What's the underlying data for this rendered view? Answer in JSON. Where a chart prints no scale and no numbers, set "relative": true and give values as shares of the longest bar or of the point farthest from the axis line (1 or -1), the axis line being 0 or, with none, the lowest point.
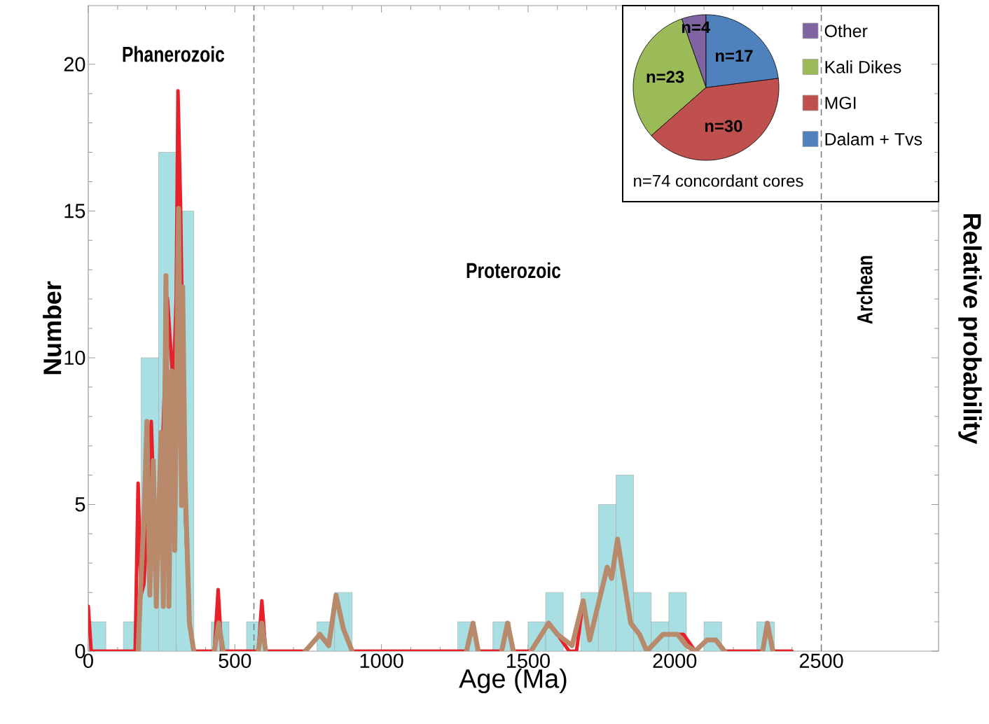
{
  "chart_data": [
    {
      "type": "histogram",
      "xlabel": "Age (Ma)",
      "ylabel": "Number",
      "color": "#a8dfe2",
      "bins": [
        0,
        60,
        120,
        180,
        240,
        300,
        360,
        420,
        480,
        540,
        600,
        660,
        720,
        780,
        840,
        900,
        960,
        1020,
        1080,
        1140,
        1200,
        1260,
        1320,
        1380,
        1440,
        1500,
        1560,
        1620,
        1680,
        1740,
        1800,
        1860,
        1920,
        1980,
        2040,
        2100,
        2160,
        2220,
        2280,
        2340
      ],
      "values": [
        1,
        0,
        1,
        10,
        17,
        15,
        0,
        1,
        0,
        1,
        0,
        0,
        0,
        1,
        2,
        0,
        0,
        0,
        0,
        0,
        0,
        1,
        0,
        1,
        0,
        1,
        2,
        0,
        2,
        5,
        6,
        2,
        1,
        2,
        0,
        1,
        0,
        0,
        1
      ],
      "xlim": [
        0,
        2900
      ],
      "xticks": [
        0,
        500,
        1000,
        1500,
        2000,
        2500
      ],
      "ylim": [
        0,
        22
      ],
      "yticks": [
        0,
        5,
        10,
        15,
        20
      ],
      "ref_lines": [
        {
          "axis": "x",
          "value": 565,
          "color": "#808080",
          "line_style": "dashed"
        },
        {
          "axis": "x",
          "value": 2500,
          "color": "#808080",
          "line_style": "dashed"
        }
      ],
      "annotations": [
        "Phanerozoic",
        "Proterozoic",
        "Archean"
      ]
    },
    {
      "type": "line",
      "relative": true,
      "ylabel": "Relative probability",
      "xlim": [
        0,
        2900
      ],
      "series": [
        {
          "color": "#e8202a",
          "x": [
            0,
            10,
            160,
            170,
            180,
            190,
            200,
            215,
            230,
            255,
            270,
            290,
            300,
            306,
            315,
            330,
            345,
            360,
            430,
            443,
            455,
            580,
            592,
            605,
            740,
            790,
            820,
            845,
            870,
            900,
            1290,
            1312,
            1330,
            1410,
            1430,
            1450,
            1510,
            1570,
            1600,
            1640,
            1665,
            1688,
            1710,
            1770,
            1785,
            1805,
            1850,
            1880,
            1905,
            1960,
            2030,
            2070,
            2110,
            2140,
            2170,
            2300,
            2316,
            2335,
            2400
          ],
          "values": [
            0.08,
            0,
            0,
            0.3,
            0.1,
            0.12,
            0.21,
            0.41,
            0.16,
            0.39,
            0.63,
            0.47,
            0.63,
            1,
            0.79,
            0.26,
            0.05,
            0,
            0,
            0.11,
            0,
            0,
            0.09,
            0,
            0,
            0.03,
            0.01,
            0.1,
            0.04,
            0,
            0,
            0.05,
            0,
            0,
            0.05,
            0,
            0,
            0.05,
            0.03,
            0,
            0,
            0.09,
            0.02,
            0.15,
            0.13,
            0.2,
            0.05,
            0.03,
            0,
            0.03,
            0.03,
            0,
            0.02,
            0.02,
            0,
            0,
            0.05,
            0,
            0
          ]
        },
        {
          "color": "#b8896b",
          "x": [
            170,
            180,
            190,
            200,
            210,
            222,
            232,
            248,
            256,
            265,
            275,
            285,
            295,
            308,
            318,
            322,
            330,
            345,
            360,
            400,
            430,
            445,
            460,
            520,
            580,
            592,
            605,
            700,
            740,
            790,
            820,
            845,
            870,
            900,
            1000,
            1290,
            1312,
            1330,
            1370,
            1410,
            1430,
            1450,
            1480,
            1510,
            1570,
            1600,
            1650,
            1688,
            1710,
            1770,
            1785,
            1805,
            1850,
            1880,
            1905,
            1960,
            2010,
            2040,
            2070,
            2110,
            2140,
            2170,
            2250,
            2300,
            2316,
            2335
          ],
          "values": [
            0,
            0.13,
            0.24,
            0.41,
            0.1,
            0.34,
            0.08,
            0.39,
            0.08,
            0.67,
            0.08,
            0.5,
            0.18,
            0.79,
            0.26,
            0.65,
            0.31,
            0.05,
            0,
            null,
            0,
            0.05,
            0,
            null,
            0,
            0.05,
            0,
            null,
            0,
            0.03,
            0.01,
            0.1,
            0.04,
            0,
            null,
            0,
            0.05,
            0,
            null,
            0,
            0.05,
            0,
            null,
            0,
            0.05,
            0.03,
            0.01,
            0.09,
            0.02,
            0.15,
            0.13,
            0.2,
            0.05,
            0.03,
            0,
            0.03,
            0.03,
            0.01,
            0,
            0.02,
            0.02,
            0,
            null,
            0,
            0.05,
            0
          ]
        }
      ]
    },
    {
      "type": "pie",
      "categories": [
        "Other",
        "Kali Dikes",
        "MGI",
        "Dalam + Tvs"
      ],
      "values": [
        4,
        23,
        30,
        17
      ],
      "colors": [
        "#8064a2",
        "#9bbb59",
        "#c0504d",
        "#4f81bd"
      ],
      "value_labels": [
        "n=4",
        "n=23",
        "n=30",
        "n=17"
      ],
      "legend": "right",
      "annotations": [
        "n=74 concordant cores"
      ]
    }
  ]
}
